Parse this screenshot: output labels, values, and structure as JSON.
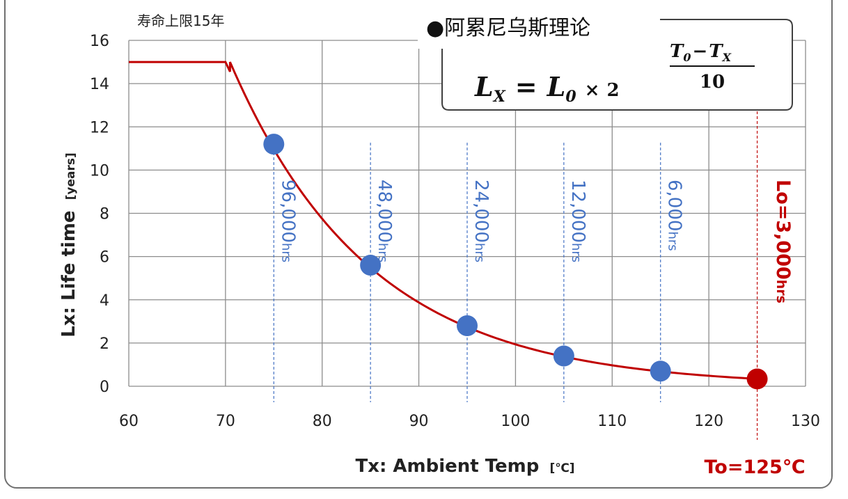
{
  "chart_data": {
    "type": "line",
    "xlabel": "Tx: Ambient Temp",
    "xlabel_unit": "[℃]",
    "ylabel": "Lx: Life time",
    "ylabel_unit": "[years]",
    "xlim": [
      60,
      130
    ],
    "ylim": [
      0,
      16
    ],
    "x_ticks": [
      "60",
      "70",
      "80",
      "90",
      "100",
      "110",
      "120",
      "130"
    ],
    "y_ticks": [
      "0",
      "2",
      "4",
      "6",
      "8",
      "10",
      "12",
      "14",
      "16"
    ],
    "grid": true,
    "curve": {
      "cap_note": "寿命上限15年",
      "cap_years": 15,
      "cap_until_x": 70,
      "L0_hours": 3000,
      "T0": 125,
      "color": "#C00000"
    },
    "points": [
      {
        "x": 75,
        "y": 11.2,
        "label_main": "96,000",
        "label_unit": "hrs"
      },
      {
        "x": 85,
        "y": 5.6,
        "label_main": "48,000",
        "label_unit": "hrs"
      },
      {
        "x": 95,
        "y": 2.8,
        "label_main": "24,000",
        "label_unit": "hrs"
      },
      {
        "x": 105,
        "y": 1.4,
        "label_main": "12,000",
        "label_unit": "hrs"
      },
      {
        "x": 115,
        "y": 0.7,
        "label_main": "6,000",
        "label_unit": "hrs"
      }
    ],
    "points_color": "#4472C4",
    "reference_point": {
      "x": 125,
      "y": 0.34,
      "label_main": "Lo=3,000",
      "label_unit": "hrs",
      "color": "#C00000"
    },
    "to_label": "To=125℃",
    "formula_box": {
      "title": "●阿累尼乌斯理论",
      "lhs": "L",
      "lhs_sub": "X",
      "eq": "=",
      "rhs": "L",
      "rhs_sub": "0",
      "times": "×",
      "base": "2",
      "exp_num": "T",
      "exp_num_sub0": "0",
      "exp_minus": "−",
      "exp_num_sub_x": "X",
      "exp_den": "10"
    }
  }
}
